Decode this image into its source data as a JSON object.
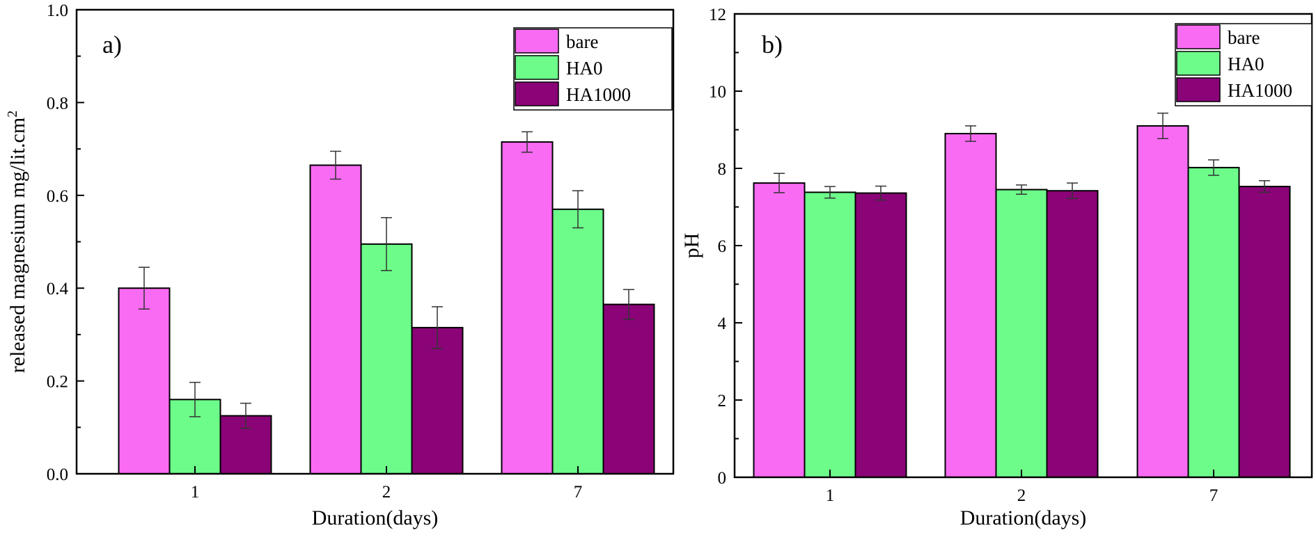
{
  "colors": {
    "bare": "#f96bf2",
    "HA0": "#6dfc8a",
    "HA1000": "#8a0477",
    "axis": "#000000",
    "background": "#ffffff"
  },
  "chart_data": [
    {
      "type": "bar",
      "panel_label": "a)",
      "title": "",
      "xlabel": "Duration(days)",
      "ylabel": "released magnesium mg/lit.cm",
      "ylabel_superscript": "2",
      "categories": [
        "1",
        "2",
        "7"
      ],
      "ylim": [
        0,
        1.0
      ],
      "yticks": [
        "0.0",
        "0.2",
        "0.4",
        "0.6",
        "0.8",
        "1.0"
      ],
      "yticks_values": [
        0,
        0.2,
        0.4,
        0.6,
        0.8,
        1.0
      ],
      "grid": false,
      "legend_position": "top-right",
      "series": [
        {
          "name": "bare",
          "values": [
            0.4,
            0.665,
            0.715
          ],
          "errors": [
            0.045,
            0.03,
            0.022
          ]
        },
        {
          "name": "HA0",
          "values": [
            0.16,
            0.495,
            0.57
          ],
          "errors": [
            0.037,
            0.057,
            0.04
          ]
        },
        {
          "name": "HA1000",
          "values": [
            0.125,
            0.315,
            0.365
          ],
          "errors": [
            0.027,
            0.045,
            0.032
          ]
        }
      ]
    },
    {
      "type": "bar",
      "panel_label": "b)",
      "title": "",
      "xlabel": "Duration(days)",
      "ylabel": "pH",
      "categories": [
        "1",
        "2",
        "7"
      ],
      "ylim": [
        0,
        12
      ],
      "yticks": [
        "0",
        "2",
        "4",
        "6",
        "8",
        "10",
        "12"
      ],
      "yticks_values": [
        0,
        2,
        4,
        6,
        8,
        10,
        12
      ],
      "grid": false,
      "legend_position": "top-right",
      "series": [
        {
          "name": "bare",
          "values": [
            7.62,
            8.9,
            9.1
          ],
          "errors": [
            0.25,
            0.2,
            0.33
          ]
        },
        {
          "name": "HA0",
          "values": [
            7.38,
            7.45,
            8.02
          ],
          "errors": [
            0.15,
            0.12,
            0.2
          ]
        },
        {
          "name": "HA1000",
          "values": [
            7.36,
            7.42,
            7.53
          ],
          "errors": [
            0.18,
            0.2,
            0.15
          ]
        }
      ]
    }
  ]
}
